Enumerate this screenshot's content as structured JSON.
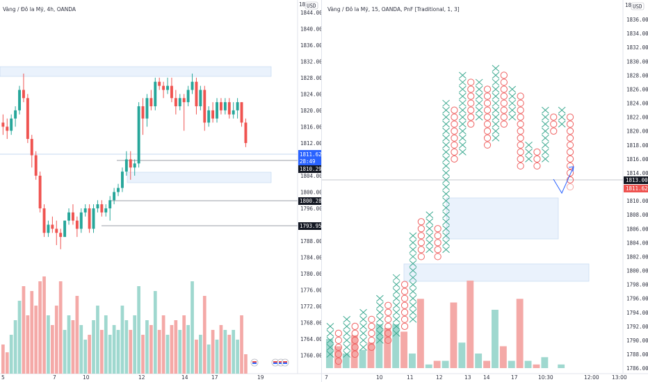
{
  "colors": {
    "up": "#26a69a",
    "down": "#ef5350",
    "up_volume": "#9fd8cf",
    "down_volume": "#f4a9a7",
    "zone_fill": "#eaf2fc",
    "zone_border": "#c5d9f2",
    "price_tag_blue": "#2962ff",
    "price_tag_dark": "#131722",
    "pnf_x": "#3aa88f",
    "pnf_o": "#ef6161"
  },
  "left_chart": {
    "title": "Vàng / Đô la Mỹ, 4h, OANDA",
    "currency": "USD",
    "price_axis": [
      "1844.000",
      "1840.000",
      "1836.000",
      "1832.000",
      "1828.000",
      "1824.000",
      "1820.000",
      "1816.000",
      "1812.000",
      "1808.000",
      "1804.000",
      "1800.000",
      "1796.000",
      "1792.000",
      "1788.000",
      "1784.000",
      "1780.000",
      "1776.000",
      "1772.000",
      "1768.000",
      "1764.000",
      "1760.000"
    ],
    "time_axis": [
      "5",
      "7",
      "10",
      "12",
      "14",
      "17",
      "19"
    ],
    "current_price": "1811.620",
    "countdown": "28:49",
    "level_1": "1810.290",
    "level_2": "1800.280",
    "level_3": "1793.950",
    "top_fragment": "18"
  },
  "right_chart": {
    "title": "Vàng / Đô la Mỹ, 15, OANDA, PnF [Traditional, 1, 3]",
    "currency": "USD",
    "price_axis": [
      "1836.000",
      "1834.000",
      "1832.000",
      "1830.000",
      "1828.000",
      "1826.000",
      "1824.000",
      "1822.000",
      "1820.000",
      "1818.000",
      "1816.000",
      "1814.000",
      "1812.000",
      "1810.000",
      "1808.000",
      "1806.000",
      "1804.000",
      "1802.000",
      "1800.000",
      "1798.000",
      "1796.000",
      "1794.000",
      "1792.000",
      "1790.000",
      "1788.000",
      "1786.000"
    ],
    "time_axis": [
      "7",
      "10",
      "11",
      "12",
      "13",
      "14",
      "17",
      "10:30",
      "12:00",
      "13:00"
    ],
    "price_tag_1": "1813.000",
    "price_tag_2": "1811.620",
    "top_fragment": "18"
  },
  "chart_data": [
    {
      "type": "candlestick",
      "title": "Vàng / Đô la Mỹ, 4h, OANDA",
      "ohlc": [
        [
          1817,
          1819,
          1814,
          1816
        ],
        [
          1816,
          1818,
          1813,
          1815
        ],
        [
          1815,
          1819,
          1814,
          1818
        ],
        [
          1818,
          1821,
          1816,
          1820
        ],
        [
          1820,
          1826,
          1819,
          1825
        ],
        [
          1825,
          1829,
          1822,
          1823
        ],
        [
          1823,
          1824,
          1812,
          1813
        ],
        [
          1813,
          1814,
          1806,
          1809
        ],
        [
          1809,
          1810,
          1803,
          1804
        ],
        [
          1804,
          1805,
          1795,
          1796
        ],
        [
          1796,
          1797,
          1789,
          1790
        ],
        [
          1790,
          1793,
          1789,
          1792
        ],
        [
          1792,
          1794,
          1790,
          1791
        ],
        [
          1791,
          1793,
          1787,
          1790
        ],
        [
          1790,
          1791,
          1786,
          1789
        ],
        [
          1789,
          1793,
          1789,
          1793
        ],
        [
          1793,
          1796,
          1792,
          1795
        ],
        [
          1795,
          1797,
          1792,
          1793
        ],
        [
          1793,
          1794,
          1789,
          1791
        ],
        [
          1791,
          1796,
          1790,
          1795
        ],
        [
          1795,
          1797,
          1794,
          1796
        ],
        [
          1796,
          1797,
          1790,
          1791
        ],
        [
          1791,
          1797,
          1790,
          1796
        ],
        [
          1796,
          1798,
          1795,
          1797
        ],
        [
          1797,
          1798,
          1794,
          1795
        ],
        [
          1795,
          1797,
          1794,
          1796
        ],
        [
          1796,
          1799,
          1793,
          1798
        ],
        [
          1798,
          1801,
          1797,
          1800
        ],
        [
          1800,
          1802,
          1799,
          1801
        ],
        [
          1801,
          1806,
          1800,
          1805
        ],
        [
          1805,
          1810,
          1804,
          1808
        ],
        [
          1808,
          1810,
          1803,
          1806
        ],
        [
          1806,
          1808,
          1804,
          1807
        ],
        [
          1807,
          1822,
          1806,
          1821
        ],
        [
          1821,
          1823,
          1814,
          1818
        ],
        [
          1818,
          1824,
          1816,
          1823
        ],
        [
          1823,
          1825,
          1820,
          1821
        ],
        [
          1821,
          1828,
          1820,
          1827
        ],
        [
          1827,
          1828,
          1825,
          1826
        ],
        [
          1826,
          1827,
          1823,
          1825
        ],
        [
          1825,
          1828,
          1824,
          1826
        ],
        [
          1826,
          1828,
          1822,
          1823
        ],
        [
          1823,
          1825,
          1819,
          1821
        ],
        [
          1821,
          1824,
          1820,
          1823
        ],
        [
          1823,
          1824,
          1815,
          1822
        ],
        [
          1822,
          1826,
          1821,
          1825
        ],
        [
          1825,
          1829,
          1824,
          1827
        ],
        [
          1827,
          1828,
          1819,
          1821
        ],
        [
          1821,
          1826,
          1820,
          1825
        ],
        [
          1825,
          1826,
          1815,
          1817
        ],
        [
          1817,
          1821,
          1816,
          1820
        ],
        [
          1820,
          1822,
          1817,
          1818
        ],
        [
          1818,
          1823,
          1817,
          1822
        ],
        [
          1822,
          1823,
          1819,
          1820
        ],
        [
          1820,
          1823,
          1819,
          1822
        ],
        [
          1822,
          1823,
          1818,
          1819
        ],
        [
          1819,
          1822,
          1818,
          1820
        ],
        [
          1820,
          1823,
          1818,
          1822
        ],
        [
          1822,
          1822,
          1816,
          1817
        ],
        [
          1817,
          1818,
          1811,
          1812
        ]
      ],
      "volume": [
        30,
        22,
        40,
        55,
        75,
        90,
        60,
        85,
        70,
        95,
        100,
        60,
        50,
        70,
        95,
        45,
        60,
        55,
        80,
        50,
        35,
        40,
        55,
        70,
        45,
        60,
        40,
        50,
        45,
        70,
        55,
        45,
        60,
        90,
        40,
        55,
        50,
        85,
        45,
        60,
        40,
        50,
        55,
        45,
        60,
        50,
        95,
        35,
        40,
        80,
        30,
        45,
        35,
        50,
        45,
        40,
        45,
        35,
        60,
        20
      ]
    },
    {
      "type": "point-and-figure",
      "title": "Vàng / Đô la Mỹ, 15, OANDA, PnF [Traditional, 1, 3]",
      "box_size": 1,
      "reversal": 3,
      "columns": [
        {
          "type": "X",
          "low": 1788,
          "high": 1792
        },
        {
          "type": "O",
          "low": 1787,
          "high": 1791
        },
        {
          "type": "X",
          "low": 1788,
          "high": 1793
        },
        {
          "type": "O",
          "low": 1788,
          "high": 1792
        },
        {
          "type": "X",
          "low": 1789,
          "high": 1794
        },
        {
          "type": "O",
          "low": 1789,
          "high": 1793
        },
        {
          "type": "X",
          "low": 1790,
          "high": 1796
        },
        {
          "type": "O",
          "low": 1790,
          "high": 1795
        },
        {
          "type": "X",
          "low": 1791,
          "high": 1799
        },
        {
          "type": "O",
          "low": 1792,
          "high": 1798
        },
        {
          "type": "X",
          "low": 1793,
          "high": 1805
        },
        {
          "type": "O",
          "low": 1802,
          "high": 1807
        },
        {
          "type": "X",
          "low": 1803,
          "high": 1808
        },
        {
          "type": "O",
          "low": 1802,
          "high": 1806
        },
        {
          "type": "X",
          "low": 1803,
          "high": 1824
        },
        {
          "type": "O",
          "low": 1816,
          "high": 1823
        },
        {
          "type": "X",
          "low": 1817,
          "high": 1828
        },
        {
          "type": "O",
          "low": 1821,
          "high": 1827
        },
        {
          "type": "X",
          "low": 1822,
          "high": 1827
        },
        {
          "type": "O",
          "low": 1818,
          "high": 1826
        },
        {
          "type": "X",
          "low": 1819,
          "high": 1829
        },
        {
          "type": "O",
          "low": 1821,
          "high": 1828
        },
        {
          "type": "X",
          "low": 1822,
          "high": 1826
        },
        {
          "type": "O",
          "low": 1815,
          "high": 1825
        },
        {
          "type": "X",
          "low": 1816,
          "high": 1818
        },
        {
          "type": "O",
          "low": 1815,
          "high": 1817
        },
        {
          "type": "X",
          "low": 1816,
          "high": 1823
        },
        {
          "type": "O",
          "low": 1820,
          "high": 1822
        },
        {
          "type": "X",
          "low": 1821,
          "high": 1823
        },
        {
          "type": "O",
          "low": 1813,
          "high": 1822
        }
      ],
      "volume": [
        40,
        30,
        20,
        45,
        25,
        35,
        60,
        55,
        60,
        50,
        20,
        95,
        5,
        10,
        10,
        90,
        35,
        120,
        20,
        10,
        80,
        30,
        10,
        95,
        10,
        5,
        15,
        0,
        5,
        0
      ]
    }
  ]
}
